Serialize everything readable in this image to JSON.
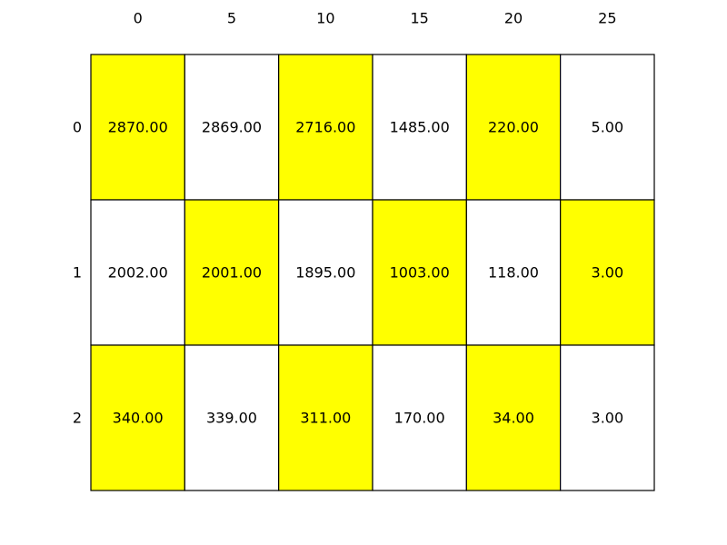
{
  "chart_data": {
    "type": "table",
    "title": "",
    "col_labels": [
      "0",
      "5",
      "10",
      "15",
      "20",
      "25"
    ],
    "row_labels": [
      "0",
      "1",
      "2"
    ],
    "values": [
      [
        "2870.00",
        "2869.00",
        "2716.00",
        "1485.00",
        "220.00",
        "5.00"
      ],
      [
        "2002.00",
        "2001.00",
        "1895.00",
        "1003.00",
        "118.00",
        "3.00"
      ],
      [
        "340.00",
        "339.00",
        "311.00",
        "170.00",
        "34.00",
        "3.00"
      ]
    ],
    "highlight": [
      [
        true,
        false,
        true,
        false,
        true,
        false
      ],
      [
        false,
        true,
        false,
        true,
        false,
        true
      ],
      [
        true,
        false,
        true,
        false,
        true,
        false
      ]
    ],
    "colors": {
      "highlight": "#ffff00",
      "plain": "#ffffff",
      "border": "#000000"
    }
  }
}
